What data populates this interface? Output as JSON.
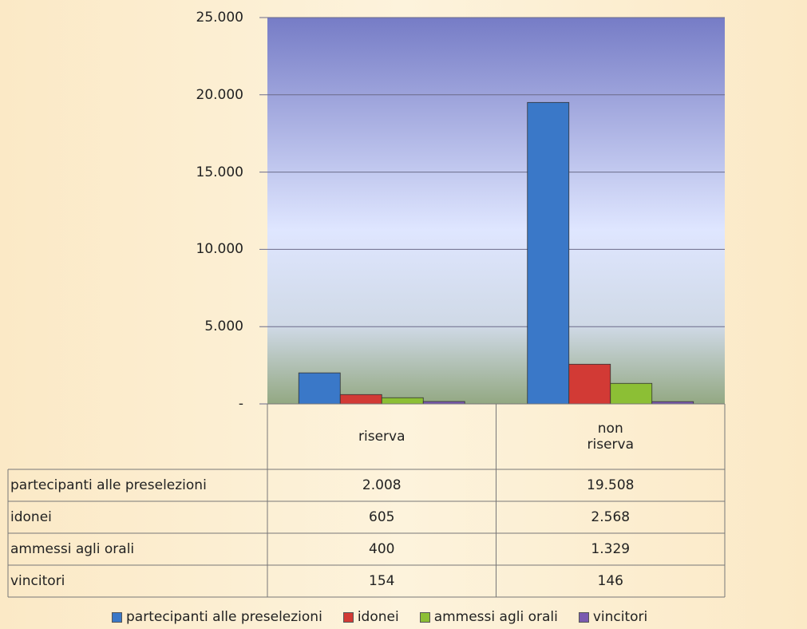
{
  "chart_data": {
    "type": "bar",
    "categories": [
      "riserva",
      "non\nriserva"
    ],
    "series": [
      {
        "name": "partecipanti alle preselezioni",
        "color": "#3a78c8",
        "values": [
          2008,
          19508
        ],
        "value_labels": [
          "2.008",
          "19.508"
        ]
      },
      {
        "name": "idonei",
        "color": "#d23a35",
        "values": [
          605,
          2568
        ],
        "value_labels": [
          "605",
          "2.568"
        ]
      },
      {
        "name": "ammessi agli orali",
        "color": "#8cbf35",
        "values": [
          400,
          1329
        ],
        "value_labels": [
          "400",
          "1.329"
        ]
      },
      {
        "name": "vincitori",
        "color": "#7a5ab0",
        "values": [
          154,
          146
        ],
        "value_labels": [
          "154",
          "146"
        ]
      }
    ],
    "ylim": [
      0,
      25000
    ],
    "yticks": [
      {
        "value": 0,
        "label": "-"
      },
      {
        "value": 5000,
        "label": "5.000"
      },
      {
        "value": 10000,
        "label": "10.000"
      },
      {
        "value": 15000,
        "label": "15.000"
      },
      {
        "value": 20000,
        "label": "20.000"
      },
      {
        "value": 25000,
        "label": "25.000"
      }
    ],
    "grid": true,
    "legend": "bottom"
  }
}
